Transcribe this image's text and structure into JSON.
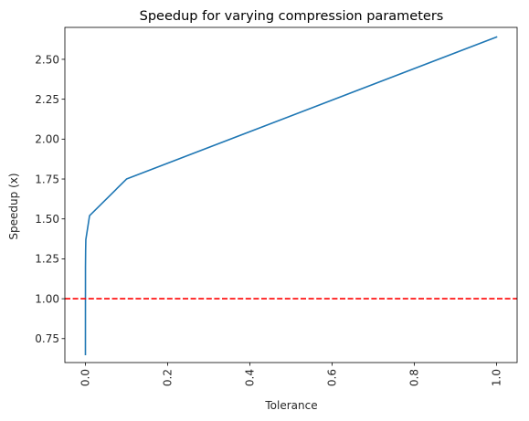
{
  "chart_data": {
    "type": "line",
    "title": "Speedup for varying compression parameters",
    "xlabel": "Tolerance",
    "ylabel": "Speedup (x)",
    "xlim": [
      -0.05,
      1.05
    ],
    "ylim": [
      0.6,
      2.7
    ],
    "x_ticks": [
      0.0,
      0.2,
      0.4,
      0.6,
      0.8,
      1.0
    ],
    "x_tick_labels": [
      "0.0",
      "0.2",
      "0.4",
      "0.6",
      "0.8",
      "1.0"
    ],
    "x_tick_rotation": 90,
    "y_ticks": [
      0.75,
      1.0,
      1.25,
      1.5,
      1.75,
      2.0,
      2.25,
      2.5
    ],
    "y_tick_labels": [
      "0.75",
      "1.00",
      "1.25",
      "1.50",
      "1.75",
      "2.00",
      "2.25",
      "2.50"
    ],
    "grid": false,
    "series": [
      {
        "color": "#1f77b4",
        "style": "solid",
        "x": [
          0.0,
          0.0,
          0.0001,
          0.0005,
          0.001,
          0.01,
          0.1,
          1.0
        ],
        "y": [
          0.65,
          0.67,
          1.2,
          1.3,
          1.37,
          1.52,
          1.75,
          2.64
        ]
      }
    ],
    "reference_lines": [
      {
        "orientation": "horizontal",
        "y": 1.0,
        "color": "#ff0000",
        "style": "dashed"
      }
    ]
  }
}
